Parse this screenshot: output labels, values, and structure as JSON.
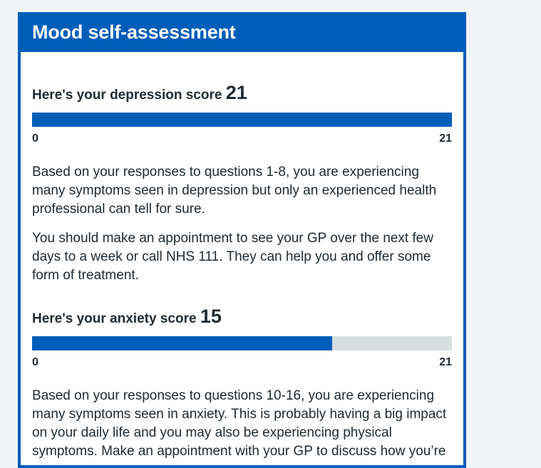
{
  "header": {
    "title": "Mood self-assessment"
  },
  "depression": {
    "heading_text": "Here's your depression score",
    "score": "21",
    "score_fraction": 1.0,
    "min_label": "0",
    "max_label": "21",
    "paragraphs": [
      "Based on your responses to questions 1-8, you are experiencing many symptoms seen in depression but only an experienced health professional can tell for sure.",
      "You should make an appointment to see your GP over the next few days to a week or call NHS 111. They can help you and offer some form of treatment."
    ]
  },
  "anxiety": {
    "heading_text": "Here's your anxiety score",
    "score": "15",
    "score_fraction": 0.714,
    "min_label": "0",
    "max_label": "21",
    "paragraphs": [
      "Based on your responses to questions 10-16, you are experiencing many symptoms seen in anxiety. This is probably having a big impact on your daily life and you may also be experiencing physical symptoms. Make an appointment with your GP to discuss how you’re"
    ]
  },
  "colors": {
    "brand_blue": "#005eb8",
    "track_grey": "#d8dde0",
    "page_background": "#f0f4f5",
    "text": "#212b32"
  }
}
